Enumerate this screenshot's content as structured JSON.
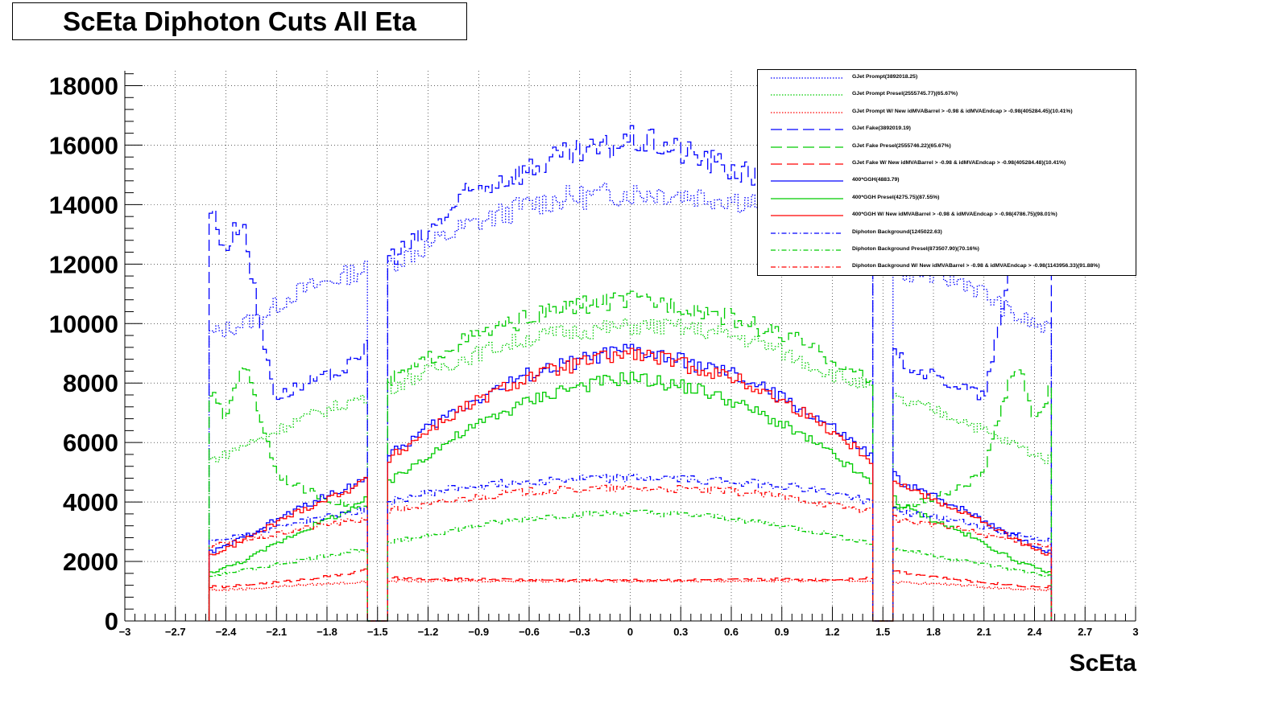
{
  "title": "ScEta Diphoton Cuts All Eta",
  "chart_data": {
    "type": "line",
    "title": "ScEta Diphoton Cuts All Eta",
    "xlabel": "ScEta",
    "ylabel": "",
    "xlim": [
      -3,
      3
    ],
    "ylim": [
      0,
      18500
    ],
    "grid": true,
    "legend_position": "top-right",
    "x_ticks": [
      "−3",
      "−2.7",
      "−2.4",
      "−2.1",
      "−1.8",
      "−1.5",
      "−1.2",
      "−0.9",
      "−0.6",
      "−0.3",
      "0",
      "0.3",
      "0.6",
      "0.9",
      "1.2",
      "1.5",
      "1.8",
      "2.1",
      "2.4",
      "2.7",
      "3"
    ],
    "y_ticks": [
      "0",
      "2000",
      "4000",
      "6000",
      "8000",
      "10000",
      "12000",
      "14000",
      "16000",
      "18000"
    ],
    "x_knots": [
      -2.5,
      -2.4,
      -2.3,
      -2.2,
      -2.1,
      -2.0,
      -1.8,
      -1.6,
      -1.57,
      -1.44,
      -1.2,
      -1.0,
      -0.8,
      -0.6,
      -0.4,
      -0.2,
      0,
      0.2,
      0.4,
      0.6,
      0.8,
      1.0,
      1.2,
      1.44,
      1.57,
      1.6,
      1.8,
      2.0,
      2.1,
      2.2,
      2.3,
      2.4,
      2.5
    ],
    "series": [
      {
        "name": "GJet Prompt(3892018.25)",
        "color": "#0000ff",
        "style": "dotted",
        "values": [
          9600,
          9800,
          10000,
          10200,
          10600,
          11000,
          11400,
          11800,
          11800,
          12000,
          12600,
          13200,
          13600,
          14000,
          14200,
          14300,
          14400,
          14400,
          14300,
          14200,
          14000,
          13600,
          13000,
          12600,
          12000,
          11800,
          11600,
          11400,
          11000,
          10600,
          10200,
          10000,
          9700
        ]
      },
      {
        "name": "GJet Prompt Presel(2555745.77)(65.67%)",
        "color": "#00cc00",
        "style": "dotted",
        "values": [
          5400,
          5600,
          5900,
          6100,
          6400,
          6700,
          7100,
          7500,
          7500,
          7800,
          8400,
          8800,
          9200,
          9500,
          9700,
          9800,
          9900,
          9900,
          9800,
          9600,
          9300,
          8800,
          8300,
          7800,
          7500,
          7400,
          7100,
          6700,
          6400,
          6100,
          5900,
          5600,
          5400
        ]
      },
      {
        "name": "GJet Prompt W/ New idMVABarrel > -0.98 & idMVAEndcap > -0.98(405284.45)(10.41%)",
        "color": "#ff0000",
        "style": "dotted",
        "values": [
          1050,
          1050,
          1080,
          1100,
          1150,
          1200,
          1250,
          1300,
          1300,
          1350,
          1350,
          1350,
          1350,
          1350,
          1350,
          1350,
          1350,
          1350,
          1350,
          1350,
          1350,
          1350,
          1350,
          1350,
          1300,
          1300,
          1250,
          1200,
          1150,
          1100,
          1080,
          1050,
          1050
        ]
      },
      {
        "name": "GJet Fake(3892019.19)",
        "color": "#0000ff",
        "style": "dashed",
        "values": [
          14000,
          12500,
          13600,
          10000,
          7500,
          7800,
          8200,
          8800,
          9400,
          12200,
          13000,
          14200,
          14800,
          15200,
          15600,
          15800,
          16200,
          16000,
          15600,
          15200,
          14800,
          14200,
          13000,
          12200,
          9400,
          8800,
          8200,
          7800,
          7500,
          10000,
          13600,
          12500,
          11800
        ]
      },
      {
        "name": "GJet Fake Presel(2555746.22)(65.67%)",
        "color": "#00cc00",
        "style": "dashed",
        "values": [
          7800,
          6800,
          8800,
          7000,
          5000,
          4600,
          4100,
          3800,
          3800,
          8000,
          8800,
          9400,
          9800,
          10200,
          10500,
          10700,
          10800,
          10700,
          10500,
          10200,
          9800,
          9400,
          8800,
          8000,
          3800,
          3800,
          4100,
          4600,
          5000,
          7000,
          8800,
          6800,
          7800
        ]
      },
      {
        "name": "GJet Fake W/ New idMVABarrel > -0.98 & idMVAEndcap > -0.98(405284.48)(10.41%)",
        "color": "#ff0000",
        "style": "dashed",
        "values": [
          1150,
          1150,
          1200,
          1250,
          1300,
          1350,
          1500,
          1650,
          1700,
          1450,
          1400,
          1400,
          1400,
          1380,
          1380,
          1380,
          1380,
          1380,
          1380,
          1380,
          1400,
          1400,
          1400,
          1450,
          1700,
          1650,
          1500,
          1350,
          1300,
          1250,
          1200,
          1150,
          1150
        ]
      },
      {
        "name": "400*GGH(4883.79)",
        "color": "#0000ff",
        "style": "solid",
        "values": [
          2300,
          2500,
          2800,
          3100,
          3400,
          3700,
          4200,
          4700,
          4900,
          5500,
          6500,
          7200,
          7800,
          8300,
          8600,
          8900,
          9100,
          8900,
          8600,
          8300,
          7800,
          7200,
          6500,
          5500,
          4900,
          4700,
          4200,
          3700,
          3400,
          3100,
          2800,
          2500,
          2300
        ]
      },
      {
        "name": "400*GGH Presel(4275.75)(87.55%)",
        "color": "#00cc00",
        "style": "solid",
        "values": [
          1600,
          1800,
          2000,
          2300,
          2600,
          2900,
          3400,
          3900,
          4200,
          4600,
          5600,
          6300,
          6900,
          7400,
          7800,
          8000,
          8200,
          8000,
          7800,
          7400,
          6900,
          6300,
          5600,
          4600,
          4200,
          3900,
          3400,
          2900,
          2600,
          2300,
          2000,
          1800,
          1600
        ]
      },
      {
        "name": "400*GGH W/ New idMVABarrel > -0.98 & idMVAEndcap > -0.98(4786.75)(98.01%)",
        "color": "#ff0000",
        "style": "solid",
        "values": [
          2200,
          2400,
          2700,
          3000,
          3300,
          3600,
          4100,
          4600,
          4800,
          5400,
          6400,
          7100,
          7700,
          8200,
          8500,
          8800,
          9000,
          8800,
          8500,
          8200,
          7700,
          7100,
          6400,
          5400,
          4800,
          4600,
          4100,
          3600,
          3300,
          3000,
          2700,
          2400,
          2200
        ]
      },
      {
        "name": "Diphoton Background(1245022.63)",
        "color": "#0000ff",
        "style": "dashdot",
        "values": [
          2700,
          2800,
          2900,
          3000,
          3150,
          3300,
          3500,
          3700,
          3750,
          4000,
          4300,
          4500,
          4600,
          4700,
          4750,
          4800,
          4800,
          4800,
          4750,
          4700,
          4600,
          4500,
          4300,
          4000,
          3750,
          3700,
          3500,
          3300,
          3150,
          3000,
          2900,
          2800,
          2700
        ]
      },
      {
        "name": "Diphoton Background Presel(873507.90)(70.16%)",
        "color": "#00cc00",
        "style": "dashdot",
        "values": [
          1500,
          1600,
          1700,
          1800,
          1900,
          2000,
          2200,
          2400,
          2400,
          2600,
          2900,
          3100,
          3300,
          3450,
          3550,
          3600,
          3650,
          3600,
          3550,
          3450,
          3300,
          3100,
          2900,
          2600,
          2400,
          2400,
          2200,
          2000,
          1900,
          1800,
          1700,
          1600,
          1500
        ]
      },
      {
        "name": "Diphoton Background W/ New idMVABarrel > -0.98 & idMVAEndcap > -0.98(1143956.33)(91.88%)",
        "color": "#ff0000",
        "style": "dashdot",
        "values": [
          2500,
          2600,
          2700,
          2800,
          2900,
          3050,
          3250,
          3400,
          3450,
          3700,
          3900,
          4100,
          4250,
          4350,
          4400,
          4450,
          4450,
          4450,
          4400,
          4350,
          4250,
          4100,
          3900,
          3700,
          3450,
          3400,
          3250,
          3050,
          2900,
          2800,
          2700,
          2600,
          2500
        ]
      }
    ]
  }
}
